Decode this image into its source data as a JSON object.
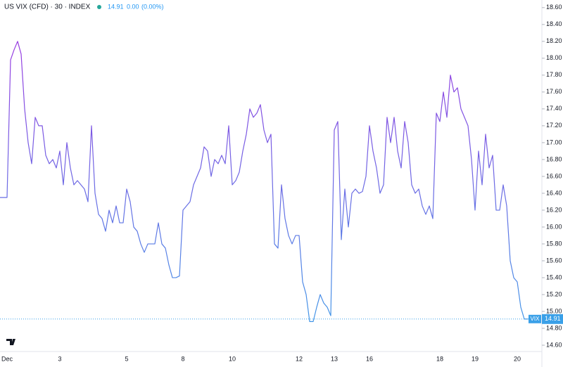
{
  "chart_data": {
    "type": "line",
    "title": "US VIX (CFD) · 30 · INDEX",
    "header": {
      "price": "14.91",
      "change": "0.00",
      "change_pct": "(0.00%)"
    },
    "categories": [
      null,
      null,
      "Dec",
      null,
      null,
      null,
      null,
      null,
      null,
      null,
      null,
      null,
      null,
      null,
      null,
      null,
      null,
      "3",
      null,
      null,
      null,
      null,
      null,
      null,
      null,
      null,
      null,
      null,
      null,
      null,
      null,
      null,
      null,
      null,
      null,
      null,
      "5",
      null,
      null,
      null,
      null,
      null,
      null,
      null,
      null,
      null,
      null,
      null,
      null,
      null,
      null,
      null,
      "8",
      null,
      null,
      null,
      null,
      null,
      null,
      null,
      null,
      null,
      null,
      null,
      null,
      null,
      "10",
      null,
      null,
      null,
      null,
      null,
      null,
      null,
      null,
      null,
      null,
      null,
      null,
      null,
      null,
      null,
      null,
      null,
      null,
      "12",
      null,
      null,
      null,
      null,
      null,
      null,
      null,
      null,
      null,
      "13",
      null,
      null,
      null,
      null,
      null,
      null,
      null,
      null,
      null,
      "16",
      null,
      null,
      null,
      null,
      null,
      null,
      null,
      null,
      null,
      null,
      null,
      null,
      null,
      null,
      null,
      null,
      null,
      null,
      null,
      "18",
      null,
      null,
      null,
      null,
      null,
      null,
      null,
      null,
      null,
      "19",
      null,
      null,
      null,
      null,
      null,
      null,
      null,
      null,
      null,
      null,
      null,
      "20",
      null,
      null,
      null
    ],
    "series": [
      {
        "name": "VIX",
        "colors": [
          "#a52ee0",
          "#3aa0e8"
        ],
        "values": [
          16.35,
          16.35,
          16.35,
          17.98,
          18.1,
          18.2,
          18.05,
          17.4,
          17.0,
          16.75,
          17.3,
          17.2,
          17.2,
          16.85,
          16.75,
          16.8,
          16.7,
          16.9,
          16.5,
          17.0,
          16.7,
          16.5,
          16.55,
          16.5,
          16.45,
          16.3,
          17.2,
          16.4,
          16.15,
          16.1,
          15.95,
          16.2,
          16.05,
          16.25,
          16.05,
          16.05,
          16.45,
          16.3,
          16.0,
          15.95,
          15.8,
          15.7,
          15.8,
          15.8,
          15.8,
          16.05,
          15.8,
          15.75,
          15.55,
          15.4,
          15.4,
          15.42,
          16.2,
          16.25,
          16.3,
          16.5,
          16.6,
          16.7,
          16.95,
          16.9,
          16.6,
          16.8,
          16.75,
          16.85,
          16.75,
          17.2,
          16.5,
          16.55,
          16.65,
          16.9,
          17.1,
          17.4,
          17.3,
          17.35,
          17.45,
          17.15,
          17.0,
          17.1,
          15.8,
          15.75,
          16.5,
          16.1,
          15.9,
          15.8,
          15.9,
          15.9,
          15.35,
          15.2,
          14.88,
          14.88,
          15.05,
          15.2,
          15.1,
          15.05,
          14.95,
          17.15,
          17.25,
          15.85,
          16.45,
          16.0,
          16.4,
          16.45,
          16.4,
          16.42,
          16.6,
          17.2,
          16.9,
          16.7,
          16.4,
          16.5,
          17.3,
          17.0,
          17.3,
          16.9,
          16.7,
          17.25,
          17.0,
          16.5,
          16.4,
          16.45,
          16.25,
          16.15,
          16.25,
          16.1,
          17.35,
          17.25,
          17.6,
          17.3,
          17.8,
          17.6,
          17.65,
          17.4,
          17.3,
          17.2,
          16.8,
          16.2,
          16.9,
          16.5,
          17.1,
          16.7,
          16.85,
          16.2,
          16.2,
          16.5,
          16.25,
          15.6,
          15.4,
          15.35,
          15.05,
          14.91,
          14.91
        ]
      }
    ],
    "last_value": 14.91,
    "last_color": "#3aa0e8",
    "ylim": [
      14.525,
      18.69
    ],
    "yticks": [
      {
        "value": 14.6,
        "label": "14.60"
      },
      {
        "value": 14.8,
        "label": "14.80"
      },
      {
        "value": 15,
        "label": "15.00"
      },
      {
        "value": 15.2,
        "label": "15.20"
      },
      {
        "value": 15.4,
        "label": "15.40"
      },
      {
        "value": 15.6,
        "label": "15.60"
      },
      {
        "value": 15.8,
        "label": "15.80"
      },
      {
        "value": 16,
        "label": "16.00"
      },
      {
        "value": 16.2,
        "label": "16.20"
      },
      {
        "value": 16.4,
        "label": "16.40"
      },
      {
        "value": 16.6,
        "label": "16.60"
      },
      {
        "value": 16.8,
        "label": "16.80"
      },
      {
        "value": 17,
        "label": "17.00"
      },
      {
        "value": 17.2,
        "label": "17.20"
      },
      {
        "value": 17.4,
        "label": "17.40"
      },
      {
        "value": 17.6,
        "label": "17.60"
      },
      {
        "value": 17.8,
        "label": "17.80"
      },
      {
        "value": 18,
        "label": "18.00"
      },
      {
        "value": 18.2,
        "label": "18.20"
      },
      {
        "value": 18.4,
        "label": "18.40"
      },
      {
        "value": 18.6,
        "label": "18.60"
      }
    ],
    "grid": false
  }
}
